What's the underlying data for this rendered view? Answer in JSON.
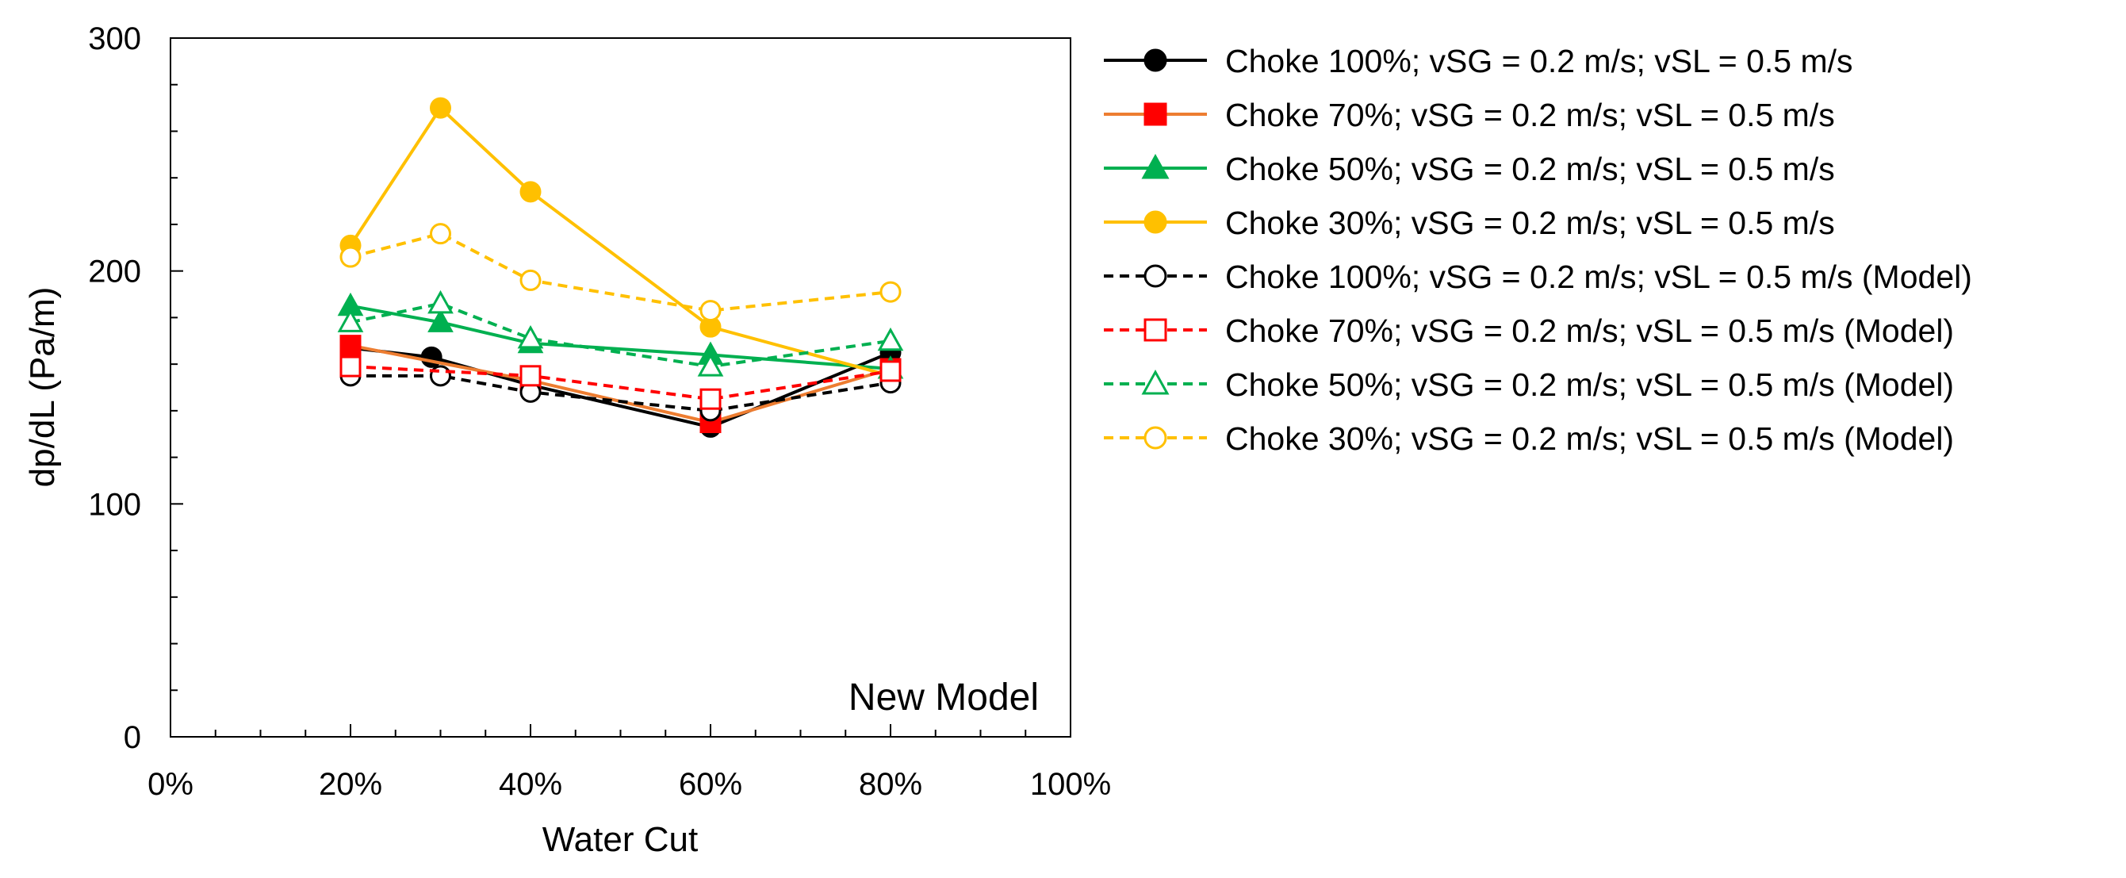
{
  "chart_data": {
    "type": "line",
    "title": "",
    "xlabel": "Water Cut",
    "ylabel": "dp/dL  (Pa/m)",
    "xlim": [
      0,
      100
    ],
    "ylim": [
      0,
      300
    ],
    "x_ticks": [
      0,
      20,
      40,
      60,
      80,
      100
    ],
    "x_tick_labels": [
      "0%",
      "20%",
      "40%",
      "60%",
      "80%",
      "100%"
    ],
    "y_ticks": [
      0,
      100,
      200,
      300
    ],
    "y_tick_labels": [
      "0",
      "100",
      "200",
      "300"
    ],
    "annotation": "New Model",
    "legend_position": "right",
    "series": [
      {
        "name": "Choke 100%; vSG = 0.2 m/s; vSL = 0.5 m/s",
        "color": "#000000",
        "dash": "solid",
        "marker": "circle",
        "filled": true,
        "x": [
          20,
          29,
          40,
          60,
          80
        ],
        "y": [
          167,
          163,
          151,
          133,
          165
        ]
      },
      {
        "name": "Choke 70%; vSG = 0.2 m/s; vSL = 0.5 m/s",
        "color": "#ed7d31",
        "marker_color": "#ff0000",
        "dash": "solid",
        "marker": "square",
        "filled": true,
        "x": [
          20,
          40,
          60,
          80
        ],
        "y": [
          168,
          153,
          135,
          158
        ]
      },
      {
        "name": "Choke 50%; vSG = 0.2 m/s; vSL = 0.5 m/s",
        "color": "#00b050",
        "dash": "solid",
        "marker": "triangle",
        "filled": true,
        "x": [
          20,
          30,
          40,
          60,
          80
        ],
        "y": [
          185,
          178,
          169,
          164,
          158
        ]
      },
      {
        "name": "Choke 30%; vSG = 0.2 m/s; vSL = 0.5 m/s",
        "color": "#ffc000",
        "dash": "solid",
        "marker": "circle",
        "filled": true,
        "x": [
          20,
          30,
          40,
          60,
          80
        ],
        "y": [
          211,
          270,
          234,
          176,
          155
        ]
      },
      {
        "name": "Choke 100%; vSG = 0.2 m/s; vSL = 0.5 m/s (Model)",
        "color": "#000000",
        "dash": "dashed",
        "marker": "circle",
        "filled": false,
        "x": [
          20,
          30,
          40,
          60,
          80
        ],
        "y": [
          155,
          155,
          148,
          140,
          152
        ]
      },
      {
        "name": "Choke 70%; vSG = 0.2 m/s; vSL = 0.5 m/s (Model)",
        "color": "#ff0000",
        "dash": "dashed",
        "marker": "square",
        "filled": false,
        "x": [
          20,
          40,
          60,
          80
        ],
        "y": [
          159,
          155,
          145,
          157
        ]
      },
      {
        "name": "Choke 50%; vSG = 0.2 m/s; vSL = 0.5 m/s (Model)",
        "color": "#00b050",
        "dash": "dashed",
        "marker": "triangle",
        "filled": false,
        "x": [
          20,
          30,
          40,
          60,
          80
        ],
        "y": [
          178,
          186,
          171,
          159,
          170
        ]
      },
      {
        "name": "Choke 30%; vSG = 0.2 m/s; vSL = 0.5 m/s (Model)",
        "color": "#ffc000",
        "dash": "dashed",
        "marker": "circle",
        "filled": false,
        "x": [
          20,
          30,
          40,
          60,
          80
        ],
        "y": [
          206,
          216,
          196,
          183,
          191
        ]
      }
    ]
  }
}
